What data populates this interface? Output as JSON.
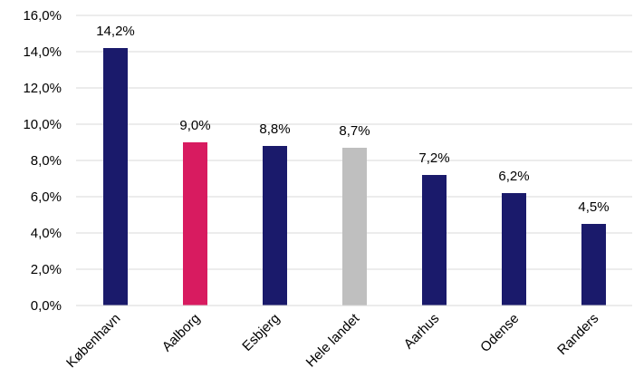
{
  "chart_data": {
    "type": "bar",
    "title": "",
    "xlabel": "",
    "ylabel": "",
    "categories": [
      "København",
      "Aalborg",
      "Esbjerg",
      "Hele landet",
      "Aarhus",
      "Odense",
      "Randers"
    ],
    "values": [
      14.2,
      9.0,
      8.8,
      8.7,
      7.2,
      6.2,
      4.5
    ],
    "data_labels": [
      "14,2%",
      "9,0%",
      "8,8%",
      "8,7%",
      "7,2%",
      "6,2%",
      "4,5%"
    ],
    "bar_colors": [
      "#1a1a6b",
      "#d81b60",
      "#1a1a6b",
      "#bfbfbf",
      "#1a1a6b",
      "#1a1a6b",
      "#1a1a6b"
    ],
    "ylim": [
      0,
      16
    ],
    "yticks": [
      0,
      2,
      4,
      6,
      8,
      10,
      12,
      14,
      16
    ],
    "ytick_labels": [
      "0,0%",
      "2,0%",
      "4,0%",
      "6,0%",
      "8,0%",
      "10,0%",
      "12,0%",
      "14,0%",
      "16,0%"
    ],
    "grid": true,
    "legend": "none"
  }
}
